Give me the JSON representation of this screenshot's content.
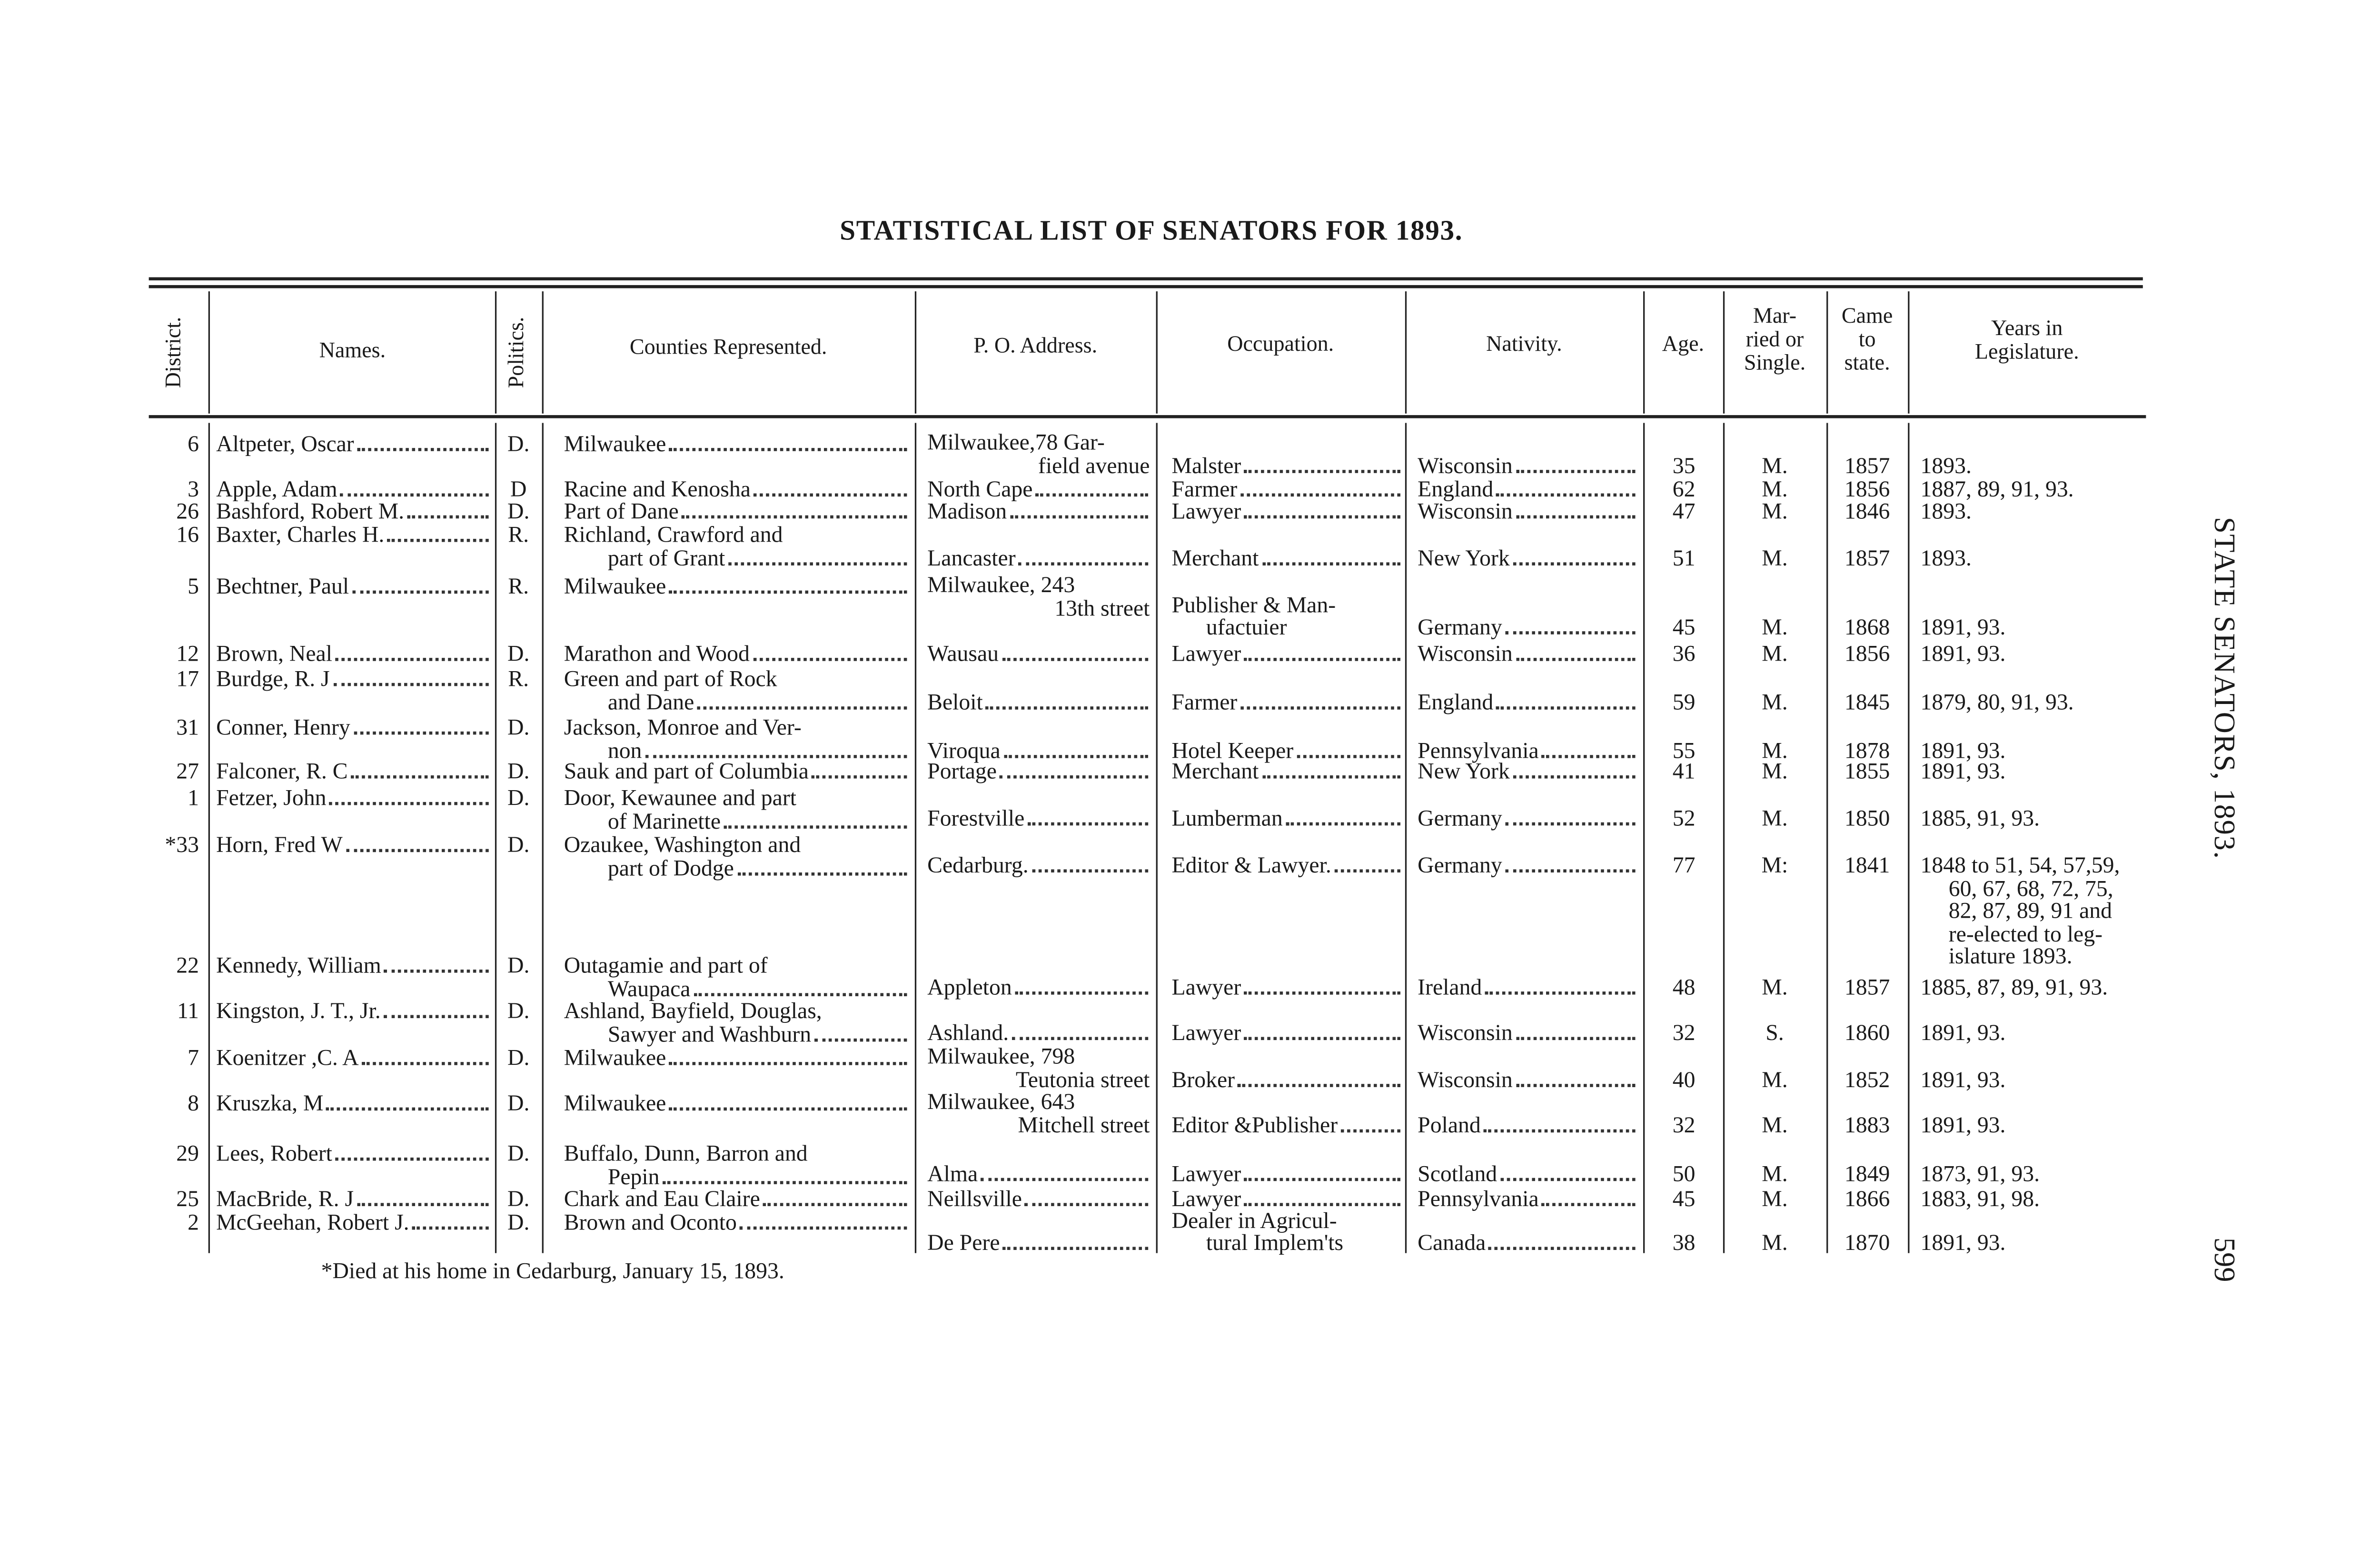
{
  "page": {
    "title": "STATISTICAL LIST OF SENATORS FOR 1893.",
    "running_head": "STATE SENATORS, 1893.",
    "page_number": "599",
    "footnote": "*Died at his home in Cedarburg, January 15, 1893."
  },
  "headers": {
    "district": "District.",
    "names": "Names.",
    "politics": "Politics.",
    "counties": "Counties Represented.",
    "address": "P. O. Address.",
    "occupation": "Occupation.",
    "nativity": "Nativity.",
    "age": "Age.",
    "married": [
      "Mar-",
      "ried or",
      "Single."
    ],
    "came": [
      "Came",
      "to",
      "state."
    ],
    "years": [
      "Years in",
      "Legislature."
    ]
  },
  "rows": [
    {
      "district": "6",
      "name": "Altpeter, Oscar",
      "politics": "D.",
      "counties": [
        "Milwaukee"
      ],
      "address": [
        "Milwaukee,78 Gar-",
        "field avenue"
      ],
      "occupation": [
        "Malster"
      ],
      "nativity": "Wisconsin",
      "age": "35",
      "married": "M.",
      "came": "1857",
      "years": [
        "1893."
      ]
    },
    {
      "district": "3",
      "name": "Apple, Adam",
      "politics": "D",
      "counties": [
        "Racine and Kenosha"
      ],
      "address": [
        "North Cape"
      ],
      "occupation": [
        "Farmer"
      ],
      "nativity": "England",
      "age": "62",
      "married": "M.",
      "came": "1856",
      "years": [
        "1887, 89, 91, 93."
      ]
    },
    {
      "district": "26",
      "name": "Bashford, Robert M.",
      "politics": "D.",
      "counties": [
        "Part of Dane"
      ],
      "address": [
        "Madison"
      ],
      "occupation": [
        "Lawyer"
      ],
      "nativity": "Wisconsin",
      "age": "47",
      "married": "M.",
      "came": "1846",
      "years": [
        "1893."
      ]
    },
    {
      "district": "16",
      "name": "Baxter, Charles H.",
      "politics": "R.",
      "counties": [
        "Richland, Crawford and",
        "part of Grant"
      ],
      "address": [
        "Lancaster"
      ],
      "occupation": [
        "Merchant"
      ],
      "nativity": "New York",
      "age": "51",
      "married": "M.",
      "came": "1857",
      "years": [
        "1893."
      ]
    },
    {
      "district": "5",
      "name": "Bechtner, Paul",
      "politics": "R.",
      "counties": [
        "Milwaukee"
      ],
      "address": [
        "Milwaukee, 243",
        "13th street"
      ],
      "occupation": [
        "Publisher & Man-",
        "ufactuier"
      ],
      "nativity": "Germany",
      "age": "45",
      "married": "M.",
      "came": "1868",
      "years": [
        "1891, 93."
      ]
    },
    {
      "district": "12",
      "name": "Brown, Neal",
      "politics": "D.",
      "counties": [
        "Marathon and Wood"
      ],
      "address": [
        "Wausau"
      ],
      "occupation": [
        "Lawyer"
      ],
      "nativity": "Wisconsin",
      "age": "36",
      "married": "M.",
      "came": "1856",
      "years": [
        "1891, 93."
      ]
    },
    {
      "district": "17",
      "name": "Burdge, R. J",
      "politics": "R.",
      "counties": [
        "Green and part of Rock",
        "and Dane"
      ],
      "address": [
        "Beloit"
      ],
      "occupation": [
        "Farmer"
      ],
      "nativity": "England",
      "age": "59",
      "married": "M.",
      "came": "1845",
      "years": [
        "1879, 80, 91, 93."
      ]
    },
    {
      "district": "31",
      "name": "Conner, Henry",
      "politics": "D.",
      "counties": [
        "Jackson, Monroe and Ver-",
        "non"
      ],
      "address": [
        "Viroqua"
      ],
      "occupation": [
        "Hotel Keeper"
      ],
      "nativity": "Pennsylvania",
      "age": "55",
      "married": "M.",
      "came": "1878",
      "years": [
        "1891, 93."
      ]
    },
    {
      "district": "27",
      "name": "Falconer, R. C",
      "politics": "D.",
      "counties": [
        "Sauk and part of Columbia"
      ],
      "address": [
        "Portage"
      ],
      "occupation": [
        "Merchant"
      ],
      "nativity": "New York",
      "age": "41",
      "married": "M.",
      "came": "1855",
      "years": [
        "1891, 93."
      ]
    },
    {
      "district": "1",
      "name": "Fetzer, John",
      "politics": "D.",
      "counties": [
        "Door, Kewaunee and part",
        "of Marinette"
      ],
      "address": [
        "Forestville"
      ],
      "occupation": [
        "Lumberman"
      ],
      "nativity": "Germany",
      "age": "52",
      "married": "M.",
      "came": "1850",
      "years": [
        "1885, 91, 93."
      ]
    },
    {
      "district": "*33",
      "name": "Horn, Fred W",
      "politics": "D.",
      "counties": [
        "Ozaukee, Washington and",
        "part of Dodge"
      ],
      "address": [
        "Cedarburg."
      ],
      "occupation": [
        "Editor & Lawyer."
      ],
      "nativity": "Germany",
      "age": "77",
      "married": "M:",
      "came": "1841",
      "years": [
        "1848 to 51, 54, 57,59,",
        "60, 67, 68, 72, 75,",
        "82, 87, 89, 91 and",
        "re-elected to leg-",
        "islature 1893."
      ]
    },
    {
      "district": "22",
      "name": "Kennedy, William",
      "politics": "D.",
      "counties": [
        "Outagamie and part of",
        "Waupaca"
      ],
      "address": [
        "Appleton"
      ],
      "occupation": [
        "Lawyer"
      ],
      "nativity": "Ireland",
      "age": "48",
      "married": "M.",
      "came": "1857",
      "years": [
        "1885, 87, 89, 91, 93."
      ]
    },
    {
      "district": "11",
      "name": "Kingston, J. T., Jr.",
      "politics": "D.",
      "counties": [
        "Ashland, Bayfield, Douglas,",
        "Sawyer and Washburn"
      ],
      "address": [
        "Ashland."
      ],
      "occupation": [
        "Lawyer"
      ],
      "nativity": "Wisconsin",
      "age": "32",
      "married": "S.",
      "came": "1860",
      "years": [
        "1891, 93."
      ]
    },
    {
      "district": "7",
      "name": "Koenitzer ,C. A",
      "politics": "D.",
      "counties": [
        "Milwaukee"
      ],
      "address": [
        "Milwaukee, 798",
        "Teutonia street"
      ],
      "occupation": [
        "Broker"
      ],
      "nativity": "Wisconsin",
      "age": "40",
      "married": "M.",
      "came": "1852",
      "years": [
        "1891, 93."
      ]
    },
    {
      "district": "8",
      "name": "Kruszka, M",
      "politics": "D.",
      "counties": [
        "Milwaukee"
      ],
      "address": [
        "Milwaukee, 643",
        "Mitchell street"
      ],
      "occupation": [
        "Editor &Publisher"
      ],
      "nativity": "Poland",
      "age": "32",
      "married": "M.",
      "came": "1883",
      "years": [
        "1891, 93."
      ]
    },
    {
      "district": "29",
      "name": "Lees, Robert",
      "politics": "D.",
      "counties": [
        "Buffalo, Dunn, Barron and",
        "Pepin"
      ],
      "address": [
        "Alma"
      ],
      "occupation": [
        "Lawyer"
      ],
      "nativity": "Scotland",
      "age": "50",
      "married": "M.",
      "came": "1849",
      "years": [
        "1873, 91, 93."
      ]
    },
    {
      "district": "25",
      "name": "MacBride, R. J",
      "politics": "D.",
      "counties": [
        "Chark and Eau Claire"
      ],
      "address": [
        "Neillsville"
      ],
      "occupation": [
        "Lawyer"
      ],
      "nativity": "Pennsylvania",
      "age": "45",
      "married": "M.",
      "came": "1866",
      "years": [
        "1883, 91, 98."
      ]
    },
    {
      "district": "2",
      "name": "McGeehan, Robert J.",
      "politics": "D.",
      "counties": [
        "Brown and Oconto"
      ],
      "address": [
        "De Pere"
      ],
      "occupation": [
        "Dealer in Agricul-",
        "tural Implem'ts"
      ],
      "nativity": "Canada",
      "age": "38",
      "married": "M.",
      "came": "1870",
      "years": [
        "1891, 93."
      ]
    }
  ]
}
